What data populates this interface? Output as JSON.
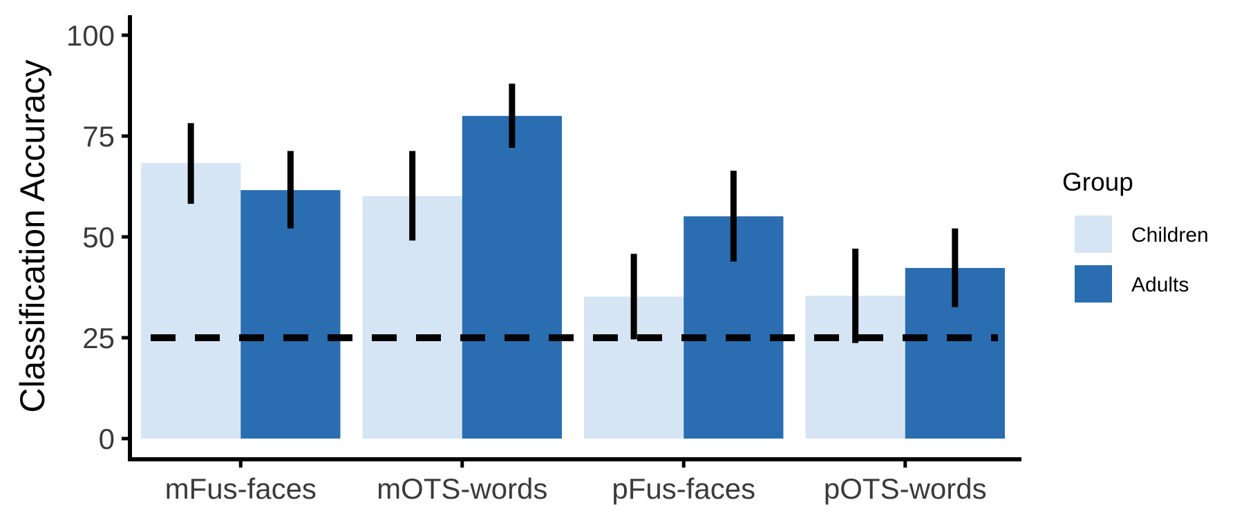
{
  "chart_data": {
    "type": "bar",
    "title": "",
    "xlabel": "",
    "ylabel": "Classification Accuracy",
    "categories": [
      "mFus-faces",
      "mOTS-words",
      "pFus-faces",
      "pOTS-words"
    ],
    "series": [
      {
        "name": "Children",
        "color": "#d6e5f4",
        "values": [
          68.3,
          60.1,
          35.2,
          35.4
        ],
        "err_low": [
          58.2,
          49.1,
          24.6,
          23.7
        ],
        "err_high": [
          78.2,
          71.3,
          45.8,
          47.1
        ]
      },
      {
        "name": "Adults",
        "color": "#2a6db0",
        "values": [
          61.6,
          80.0,
          55.1,
          42.3
        ],
        "err_low": [
          52.1,
          72.1,
          43.9,
          32.6
        ],
        "err_high": [
          71.3,
          88.0,
          66.4,
          52.1
        ]
      }
    ],
    "ylim": [
      -5,
      105
    ],
    "yticks": [
      "0",
      "25",
      "50",
      "75",
      "100"
    ],
    "reference_line": {
      "value": 25,
      "style": "dashed"
    },
    "legend": {
      "title": "Group",
      "placement": "right"
    },
    "grid": false
  }
}
